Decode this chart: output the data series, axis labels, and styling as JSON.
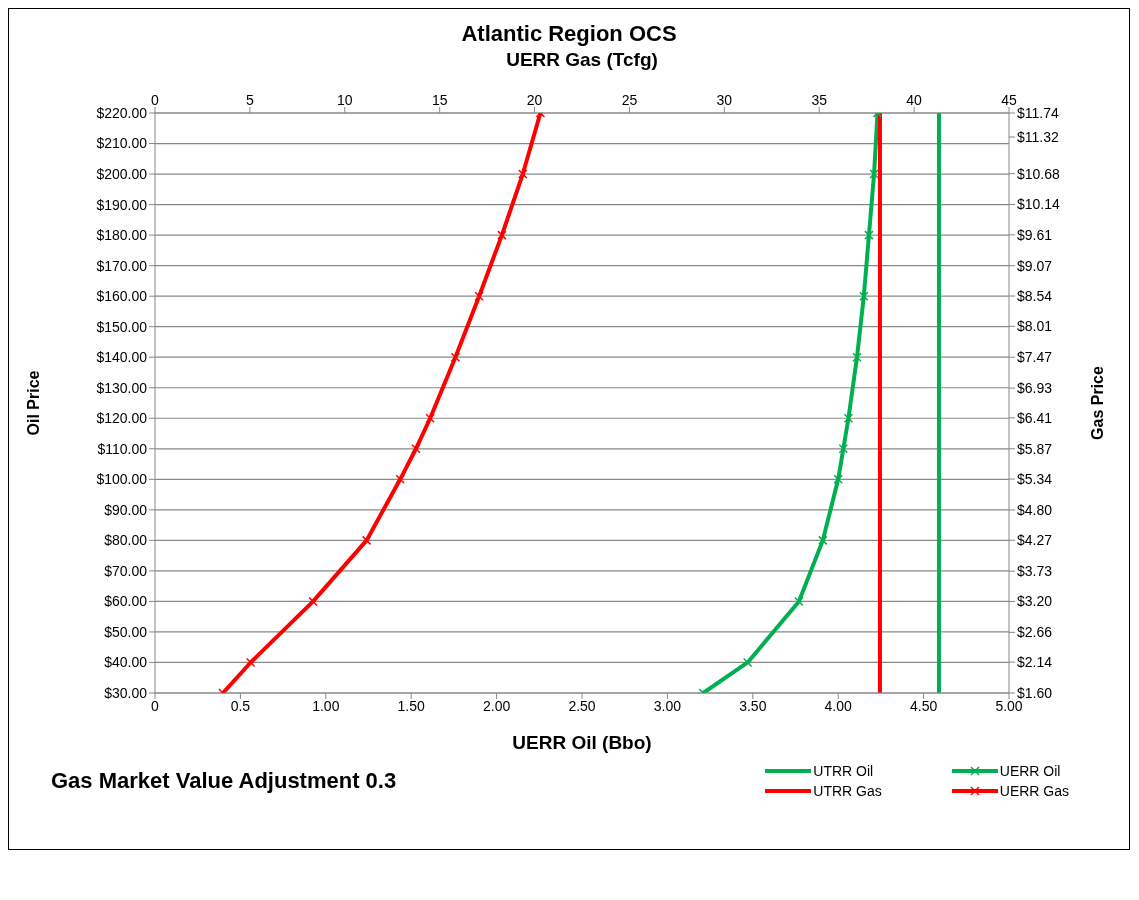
{
  "chart_data": {
    "type": "line",
    "title": "Atlantic Region OCS",
    "x2label": "UERR Gas (Tcfg)",
    "xlabel": "UERR Oil (Bbo)",
    "ylabel": "Oil Price",
    "y2label": "Gas Price",
    "annotations": [
      "Gas Market Value Adjustment 0.3"
    ],
    "series": [
      {
        "name": "UTRR Oil",
        "color": "#00b050",
        "marker": "none",
        "x": [
          4.59,
          4.59
        ],
        "values": [
          30,
          220
        ]
      },
      {
        "name": "UERR Oil",
        "color": "#00b050",
        "marker": "cross",
        "x": [
          3.21,
          3.47,
          3.77,
          3.91,
          4.0,
          4.03,
          4.06,
          4.11,
          4.15,
          4.18,
          4.21,
          4.23
        ],
        "values": [
          30,
          40,
          60,
          80,
          100,
          110,
          120,
          140,
          160,
          180,
          200,
          220
        ]
      },
      {
        "name": "UTRR Gas",
        "color": "#ff0000",
        "marker": "none",
        "axis": "x2",
        "x": [
          38.2,
          38.2
        ],
        "values": [
          30,
          220
        ]
      },
      {
        "name": "UERR Gas",
        "color": "#ff0000",
        "marker": "cross",
        "axis": "x2",
        "x": [
          3.58,
          5.04,
          8.33,
          11.15,
          12.92,
          13.75,
          14.5,
          15.83,
          17.08,
          18.28,
          19.38,
          20.31
        ],
        "values": [
          30,
          40,
          60,
          80,
          100,
          110,
          120,
          140,
          160,
          180,
          200,
          220
        ]
      }
    ],
    "xlim": [
      0,
      5
    ],
    "xticks": [
      0,
      0.5,
      {
        "value": 1,
        "label": "1.00"
      },
      {
        "value": 1.5,
        "label": "1.50"
      },
      {
        "value": 2,
        "label": "2.00"
      },
      {
        "value": 2.5,
        "label": "2.50"
      },
      {
        "value": 3,
        "label": "3.00"
      },
      {
        "value": 3.5,
        "label": "3.50"
      },
      {
        "value": 4,
        "label": "4.00"
      },
      {
        "value": 4.5,
        "label": "4.50"
      },
      {
        "value": 5,
        "label": "5.00"
      }
    ],
    "x2lim": [
      0,
      45
    ],
    "x2ticks": [
      0,
      5,
      10,
      15,
      20,
      25,
      30,
      35,
      40,
      45
    ],
    "ylim": [
      30,
      220
    ],
    "yticks": [
      {
        "value": 30,
        "label": "$30.00"
      },
      {
        "value": 40,
        "label": "$40.00"
      },
      {
        "value": 50,
        "label": "$50.00"
      },
      {
        "value": 60,
        "label": "$60.00"
      },
      {
        "value": 70,
        "label": "$70.00"
      },
      {
        "value": 80,
        "label": "$80.00"
      },
      {
        "value": 90,
        "label": "$90.00"
      },
      {
        "value": 100,
        "label": "$100.00"
      },
      {
        "value": 110,
        "label": "$110.00"
      },
      {
        "value": 120,
        "label": "$120.00"
      },
      {
        "value": 130,
        "label": "$130.00"
      },
      {
        "value": 140,
        "label": "$140.00"
      },
      {
        "value": 150,
        "label": "$150.00"
      },
      {
        "value": 160,
        "label": "$160.00"
      },
      {
        "value": 170,
        "label": "$170.00"
      },
      {
        "value": 180,
        "label": "$180.00"
      },
      {
        "value": 190,
        "label": "$190.00"
      },
      {
        "value": 200,
        "label": "$200.00"
      },
      {
        "value": 210,
        "label": "$210.00"
      },
      {
        "value": 220,
        "label": "$220.00"
      }
    ],
    "y2lim": [
      1.6,
      11.74
    ],
    "y2ticks": [
      {
        "value": 1.6,
        "label": "$1.60"
      },
      {
        "value": 2.14,
        "label": "$2.14"
      },
      {
        "value": 2.66,
        "label": "$2.66"
      },
      {
        "value": 3.2,
        "label": "$3.20"
      },
      {
        "value": 3.73,
        "label": "$3.73"
      },
      {
        "value": 4.27,
        "label": "$4.27"
      },
      {
        "value": 4.8,
        "label": "$4.80"
      },
      {
        "value": 5.34,
        "label": "$5.34"
      },
      {
        "value": 5.87,
        "label": "$5.87"
      },
      {
        "value": 6.41,
        "label": "$6.41"
      },
      {
        "value": 6.93,
        "label": "$6.93"
      },
      {
        "value": 7.47,
        "label": "$7.47"
      },
      {
        "value": 8.01,
        "label": "$8.01"
      },
      {
        "value": 8.54,
        "label": "$8.54"
      },
      {
        "value": 9.07,
        "label": "$9.07"
      },
      {
        "value": 9.61,
        "label": "$9.61"
      },
      {
        "value": 10.14,
        "label": "$10.14"
      },
      {
        "value": 10.68,
        "label": "$10.68"
      },
      {
        "value": 11.32,
        "label": "$11.32"
      },
      {
        "value": 11.74,
        "label": "$11.74"
      }
    ],
    "grid": "y",
    "legend": "bottom right",
    "line_style": "solid"
  }
}
